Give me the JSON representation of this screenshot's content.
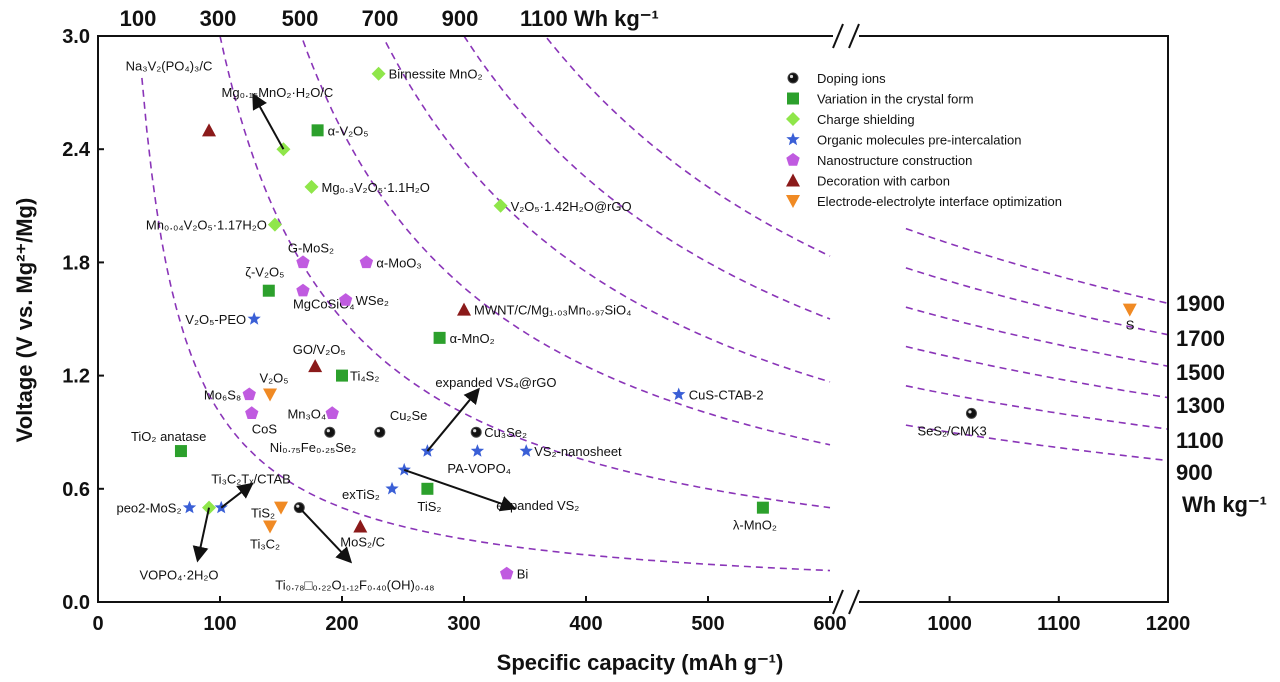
{
  "chart_data": {
    "type": "scatter",
    "xlabel": "Specific capacity (mAh g⁻¹)",
    "ylabel": "Voltage (V vs. Mg²⁺/Mg)",
    "x_ticks_left": [
      "0",
      "100",
      "200",
      "300",
      "400",
      "500",
      "600"
    ],
    "x_ticks_right": [
      "1000",
      "1100",
      "1200"
    ],
    "x_break_left_range": [
      0,
      600
    ],
    "x_break_right_range": [
      900,
      1200
    ],
    "y_ticks": [
      "0.0",
      "0.6",
      "1.2",
      "1.8",
      "2.4",
      "3.0"
    ],
    "ylim": [
      0,
      3.0
    ],
    "top_energy_labels": [
      "100",
      "300",
      "500",
      "700",
      "900",
      "1100 Wh kg⁻¹"
    ],
    "right_energy_labels": [
      "1900",
      "1700",
      "1500",
      "1300",
      "1100",
      "900"
    ],
    "right_energy_unit": "Wh kg⁻¹",
    "iso_energy_lines_whkg": [
      100,
      300,
      500,
      700,
      900,
      1100,
      900,
      1100,
      1300,
      1500,
      1700,
      1900
    ],
    "legend_position": "top-right",
    "legend": [
      {
        "name": "Doping ions",
        "marker": "circle",
        "color": "#111111"
      },
      {
        "name": "Variation in the crystal form",
        "marker": "square",
        "color": "#2ca02c"
      },
      {
        "name": "Charge shielding",
        "marker": "diamond",
        "color": "#8fe64a"
      },
      {
        "name": "Organic molecules pre-intercalation",
        "marker": "star",
        "color": "#3a5fd6"
      },
      {
        "name": "Nanostructure construction",
        "marker": "pentagon",
        "color": "#c05be0"
      },
      {
        "name": "Decoration with carbon",
        "marker": "triangle",
        "color": "#8b1a1a"
      },
      {
        "name": "Electrode-electrolyte interface optimization",
        "marker": "triangle-down",
        "color": "#f08a24"
      }
    ],
    "points": [
      {
        "label": "Birnessite MnO₂",
        "x": 230,
        "y": 2.8,
        "series": 2
      },
      {
        "label": "Mg₀.₁₅MnO₂·H₂O/C",
        "x": 152,
        "y": 2.4,
        "series": 2
      },
      {
        "label": "Na₃V₂(PO₄)₃/C",
        "x": 91,
        "y": 2.5,
        "series": 5
      },
      {
        "label": "α-V₂O₅",
        "x": 180,
        "y": 2.5,
        "series": 1
      },
      {
        "label": "Mg₀.₃V₂O₅·1.1H₂O",
        "x": 175,
        "y": 2.2,
        "series": 2
      },
      {
        "label": "V₂O₅·1.42H₂O@rGO",
        "x": 330,
        "y": 2.1,
        "series": 2
      },
      {
        "label": "Mn₀.₀₄V₂O₅·1.17H₂O",
        "x": 145,
        "y": 2.0,
        "series": 2
      },
      {
        "label": "G-MoS₂",
        "x": 168,
        "y": 1.8,
        "series": 4
      },
      {
        "label": "α-MoO₃",
        "x": 220,
        "y": 1.8,
        "series": 4
      },
      {
        "label": "ζ-V₂O₅",
        "x": 140,
        "y": 1.65,
        "series": 1
      },
      {
        "label": "MgCoSiO₄",
        "x": 168,
        "y": 1.65,
        "series": 4
      },
      {
        "label": "WSe₂",
        "x": 203,
        "y": 1.6,
        "series": 4
      },
      {
        "label": "MWNT/C/Mg₁.₀₃Mn₀.₉₇SiO₄",
        "x": 300,
        "y": 1.55,
        "series": 5
      },
      {
        "label": "V₂O₅-PEO",
        "x": 128,
        "y": 1.5,
        "series": 3
      },
      {
        "label": "α-MnO₂",
        "x": 280,
        "y": 1.4,
        "series": 1
      },
      {
        "label": "GO/V₂O₅",
        "x": 178,
        "y": 1.25,
        "series": 5
      },
      {
        "label": "Ti₄S₂",
        "x": 200,
        "y": 1.2,
        "series": 1
      },
      {
        "label": "CuS-CTAB-2",
        "x": 476,
        "y": 1.1,
        "series": 3
      },
      {
        "label": "Mo₆S₈",
        "x": 124,
        "y": 1.1,
        "series": 4
      },
      {
        "label": "V₂O₅",
        "x": 141,
        "y": 1.1,
        "series": 6
      },
      {
        "label": "CoS",
        "x": 126,
        "y": 1.0,
        "series": 4
      },
      {
        "label": "Mn₃O₄",
        "x": 192,
        "y": 1.0,
        "series": 4
      },
      {
        "label": "Cu₂Se",
        "x": 231,
        "y": 0.9,
        "series": 0
      },
      {
        "label": "Ni₀.₇₅Fe₀.₂₅Se₂",
        "x": 190,
        "y": 0.9,
        "series": 0
      },
      {
        "label": "Cu₃Se₂",
        "x": 310,
        "y": 0.9,
        "series": 0
      },
      {
        "label": "expanded VS₄@rGO",
        "x": 270,
        "y": 0.8,
        "series": 3
      },
      {
        "label": "PA-VOPO₄",
        "x": 311,
        "y": 0.8,
        "series": 3
      },
      {
        "label": "VS₂-nanosheet",
        "x": 351,
        "y": 0.8,
        "series": 3
      },
      {
        "label": "TiO₂ anatase",
        "x": 68,
        "y": 0.8,
        "series": 1
      },
      {
        "label": "expanded VS₂",
        "x": 251,
        "y": 0.7,
        "series": 3
      },
      {
        "label": "exTiS₂",
        "x": 241,
        "y": 0.6,
        "series": 3
      },
      {
        "label": "TiS₂",
        "x": 270,
        "y": 0.6,
        "series": 1
      },
      {
        "label": "Ti₃C₂Tₓ/CTAB",
        "x": 101,
        "y": 0.5,
        "series": 3
      },
      {
        "label": "peo2-MoS₂",
        "x": 75,
        "y": 0.5,
        "series": 3
      },
      {
        "label": "VOPO₄·2H₂O",
        "x": 91,
        "y": 0.5,
        "series": 2
      },
      {
        "label": "TiS₂",
        "x": 150,
        "y": 0.5,
        "series": 6
      },
      {
        "label": "Ti₃C₂",
        "x": 141,
        "y": 0.4,
        "series": 6
      },
      {
        "label": "Ti₀.₇₈□₀.₂₂O₁.₁₂F₀.₄₀(OH)₀.₄₈",
        "x": 165,
        "y": 0.5,
        "series": 0
      },
      {
        "label": "MoS₂/C",
        "x": 215,
        "y": 0.4,
        "series": 5
      },
      {
        "label": "Bi",
        "x": 335,
        "y": 0.15,
        "series": 4
      },
      {
        "label": "λ-MnO₂",
        "x": 545,
        "y": 0.5,
        "series": 1
      },
      {
        "label": "SeS₂/CMK3",
        "x": 1020,
        "y": 1.0,
        "series": 0
      },
      {
        "label": "S",
        "x": 1165,
        "y": 1.55,
        "series": 6
      }
    ]
  },
  "labels": {
    "x_title": "Specific capacity (mAh g⁻¹)",
    "y_title": "Voltage (V vs. Mg²⁺/Mg)"
  }
}
